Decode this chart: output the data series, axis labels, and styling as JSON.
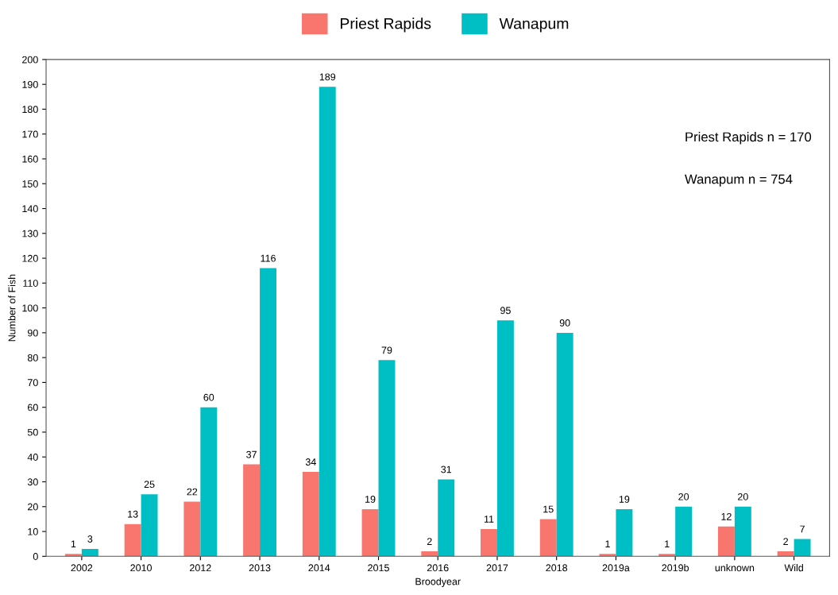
{
  "chart_data": {
    "type": "bar",
    "xlabel": "Broodyear",
    "ylabel": "Number of Fish",
    "categories": [
      "2002",
      "2010",
      "2012",
      "2013",
      "2014",
      "2015",
      "2016",
      "2017",
      "2018",
      "2019a",
      "2019b",
      "unknown",
      "Wild"
    ],
    "series": [
      {
        "name": "Priest Rapids",
        "color": "#f8766d",
        "values": [
          1,
          13,
          22,
          37,
          34,
          19,
          2,
          11,
          15,
          1,
          1,
          12,
          2
        ]
      },
      {
        "name": "Wanapum",
        "color": "#00bfc4",
        "values": [
          3,
          25,
          60,
          116,
          189,
          79,
          31,
          95,
          90,
          19,
          20,
          20,
          7
        ]
      }
    ],
    "ylim": [
      0,
      200
    ],
    "yticks": [
      0,
      10,
      20,
      30,
      40,
      50,
      60,
      70,
      80,
      90,
      100,
      110,
      120,
      130,
      140,
      150,
      160,
      170,
      180,
      190,
      200
    ],
    "data_labels": true,
    "grid": false,
    "legend": "top",
    "annotations": [
      "Priest Rapids n = 170",
      "Wanapum n = 754"
    ]
  }
}
